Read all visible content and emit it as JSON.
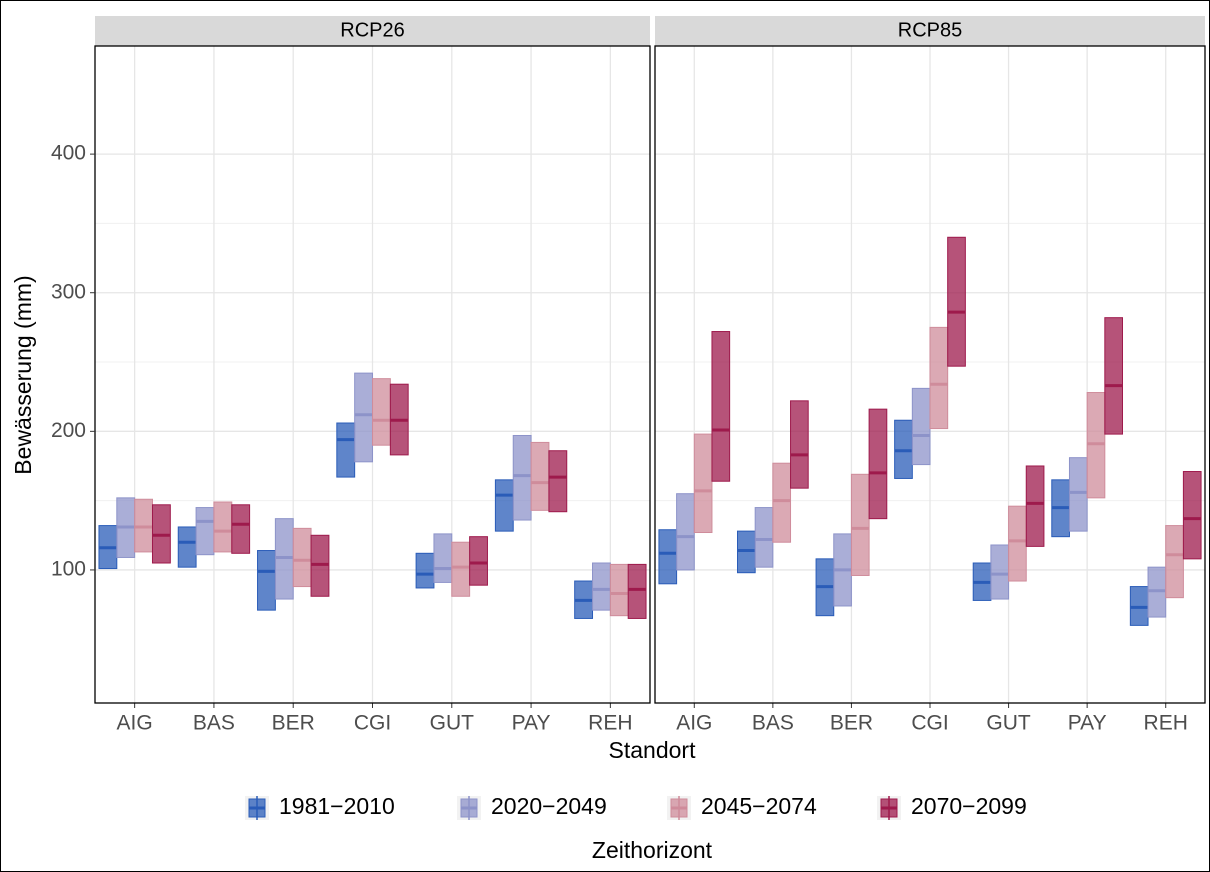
{
  "chart_data": {
    "type": "crossbar",
    "xlabel": "Standort",
    "ylabel": "Bewässerung (mm)",
    "legend_title": "Zeithorizont",
    "legend_position": "bottom",
    "grid": true,
    "categories": [
      "AIG",
      "BAS",
      "BER",
      "CGI",
      "GUT",
      "PAY",
      "REH"
    ],
    "ylim": [
      4,
      478
    ],
    "yticks": [
      100,
      200,
      300,
      400
    ],
    "legend": [
      {
        "name": "1981−2010",
        "color": "#2a5cb8"
      },
      {
        "name": "2020−2049",
        "color": "#8d93c9"
      },
      {
        "name": "2045−2074",
        "color": "#cf8c9b"
      },
      {
        "name": "2070−2099",
        "color": "#9e1a4c"
      }
    ],
    "facets": [
      {
        "title": "RCP26",
        "series": [
          {
            "values": [
              116,
              120,
              99,
              194,
              97,
              154,
              78
            ],
            "low": [
              101,
              102,
              71,
              167,
              87,
              128,
              65
            ],
            "high": [
              132,
              131,
              114,
              206,
              112,
              165,
              92
            ]
          },
          {
            "values": [
              131,
              135,
              109,
              212,
              101,
              168,
              86
            ],
            "low": [
              109,
              111,
              79,
              178,
              91,
              136,
              71
            ],
            "high": [
              152,
              145,
              137,
              242,
              126,
              197,
              105
            ]
          },
          {
            "values": [
              131,
              128,
              107,
              208,
              102,
              163,
              83
            ],
            "low": [
              113,
              113,
              88,
              190,
              81,
              143,
              67
            ],
            "high": [
              151,
              149,
              130,
              238,
              120,
              192,
              104
            ]
          },
          {
            "values": [
              125,
              133,
              104,
              208,
              105,
              167,
              86
            ],
            "low": [
              105,
              112,
              81,
              183,
              89,
              142,
              65
            ],
            "high": [
              147,
              147,
              125,
              234,
              124,
              186,
              104
            ]
          }
        ]
      },
      {
        "title": "RCP85",
        "series": [
          {
            "values": [
              112,
              114,
              88,
              186,
              91,
              145,
              73
            ],
            "low": [
              90,
              98,
              67,
              166,
              78,
              124,
              60
            ],
            "high": [
              129,
              128,
              108,
              208,
              105,
              165,
              88
            ]
          },
          {
            "values": [
              124,
              122,
              100,
              197,
              97,
              156,
              85
            ],
            "low": [
              100,
              102,
              74,
              176,
              79,
              128,
              66
            ],
            "high": [
              155,
              145,
              126,
              231,
              118,
              181,
              102
            ]
          },
          {
            "values": [
              157,
              150,
              130,
              234,
              121,
              191,
              111
            ],
            "low": [
              127,
              120,
              96,
              202,
              92,
              152,
              80
            ],
            "high": [
              198,
              177,
              169,
              275,
              146,
              228,
              132
            ]
          },
          {
            "values": [
              201,
              183,
              170,
              286,
              148,
              233,
              137
            ],
            "low": [
              164,
              159,
              137,
              247,
              117,
              198,
              108
            ],
            "high": [
              272,
              222,
              216,
              340,
              175,
              282,
              171
            ]
          }
        ]
      }
    ]
  }
}
